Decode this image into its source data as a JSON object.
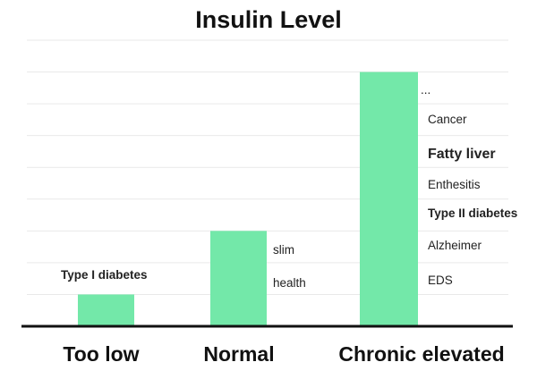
{
  "chart_data": {
    "type": "bar",
    "title": "Insulin Level",
    "categories": [
      "Too low",
      "Normal",
      "Chronic elevated"
    ],
    "values": [
      1,
      3,
      8
    ],
    "ylim": [
      0,
      9
    ],
    "grid": true,
    "bar_color": "#73e8a9",
    "annotations": [
      {
        "category": "Too low",
        "items": [
          {
            "text": "Type I diabetes",
            "weight": "bold",
            "color": "#222222"
          }
        ]
      },
      {
        "category": "Normal",
        "items": [
          {
            "text": "slim",
            "weight": "normal",
            "color": "#222222"
          },
          {
            "text": "health",
            "weight": "normal",
            "color": "#222222"
          }
        ]
      },
      {
        "category": "Chronic elevated",
        "items": [
          {
            "text": "...",
            "weight": "normal",
            "color": "#555555"
          },
          {
            "text": "Cancer",
            "weight": "normal",
            "color": "#222222"
          },
          {
            "text": "Fatty liver",
            "weight": "bold",
            "color": "#9a7420",
            "emphasis": true
          },
          {
            "text": "Enthesitis",
            "weight": "normal",
            "color": "#222222"
          },
          {
            "text": "Type II diabetes",
            "weight": "bold",
            "color": "#111111"
          },
          {
            "text": "Alzheimer",
            "weight": "normal",
            "color": "#222222"
          },
          {
            "text": "EDS",
            "weight": "normal",
            "color": "#222222"
          }
        ]
      }
    ]
  }
}
